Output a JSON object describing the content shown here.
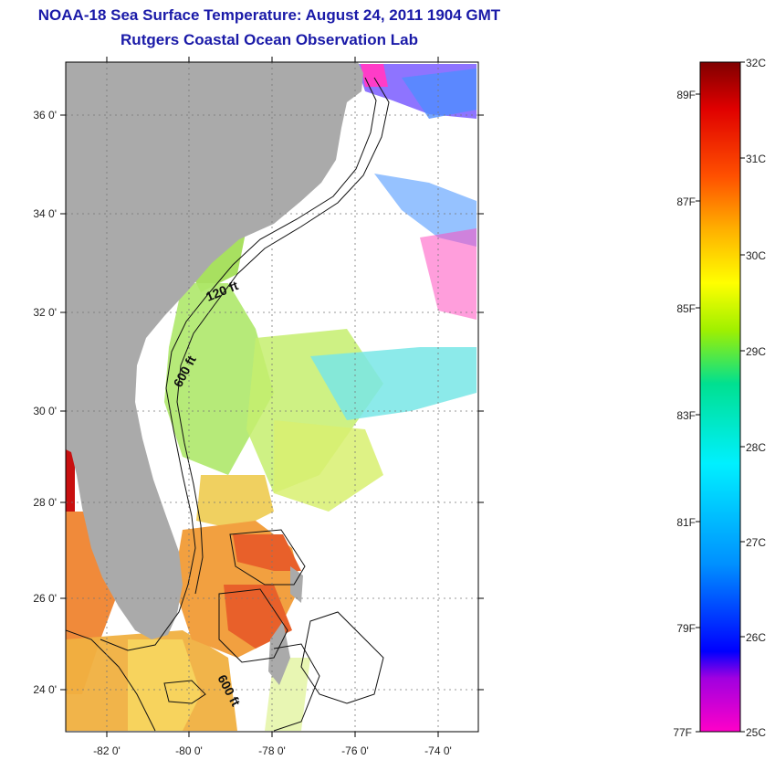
{
  "title": "NOAA-18 Sea Surface Temperature:  August 24, 2011 1904 GMT",
  "subtitle": "Rutgers Coastal Ocean Observation Lab",
  "map": {
    "lat_labels": [
      "36 0'",
      "34 0'",
      "32 0'",
      "30 0'",
      "28 0'",
      "26 0'",
      "24 0'"
    ],
    "lon_labels": [
      "-82 0'",
      "-80 0'",
      "-78 0'",
      "-76 0'",
      "-74 0'"
    ],
    "contour_labels": [
      "120 ft",
      "600 ft",
      "600 ft"
    ],
    "colors": {
      "land": "#aaaaaa",
      "contour": "#111111",
      "grid": "#777777"
    }
  },
  "colorbar": {
    "celsius_labels": [
      "32C",
      "31C",
      "30C",
      "29C",
      "28C",
      "27C",
      "26C",
      "25C"
    ],
    "fahrenheit_labels": [
      "89F",
      "87F",
      "85F",
      "83F",
      "81F",
      "79F",
      "77F"
    ],
    "stops": [
      "#ff00c8",
      "#a000e0",
      "#0000ff",
      "#0090ff",
      "#00f0ff",
      "#00e090",
      "#a0f000",
      "#ffff00",
      "#ffb000",
      "#ff5000",
      "#e00000",
      "#800000"
    ]
  }
}
